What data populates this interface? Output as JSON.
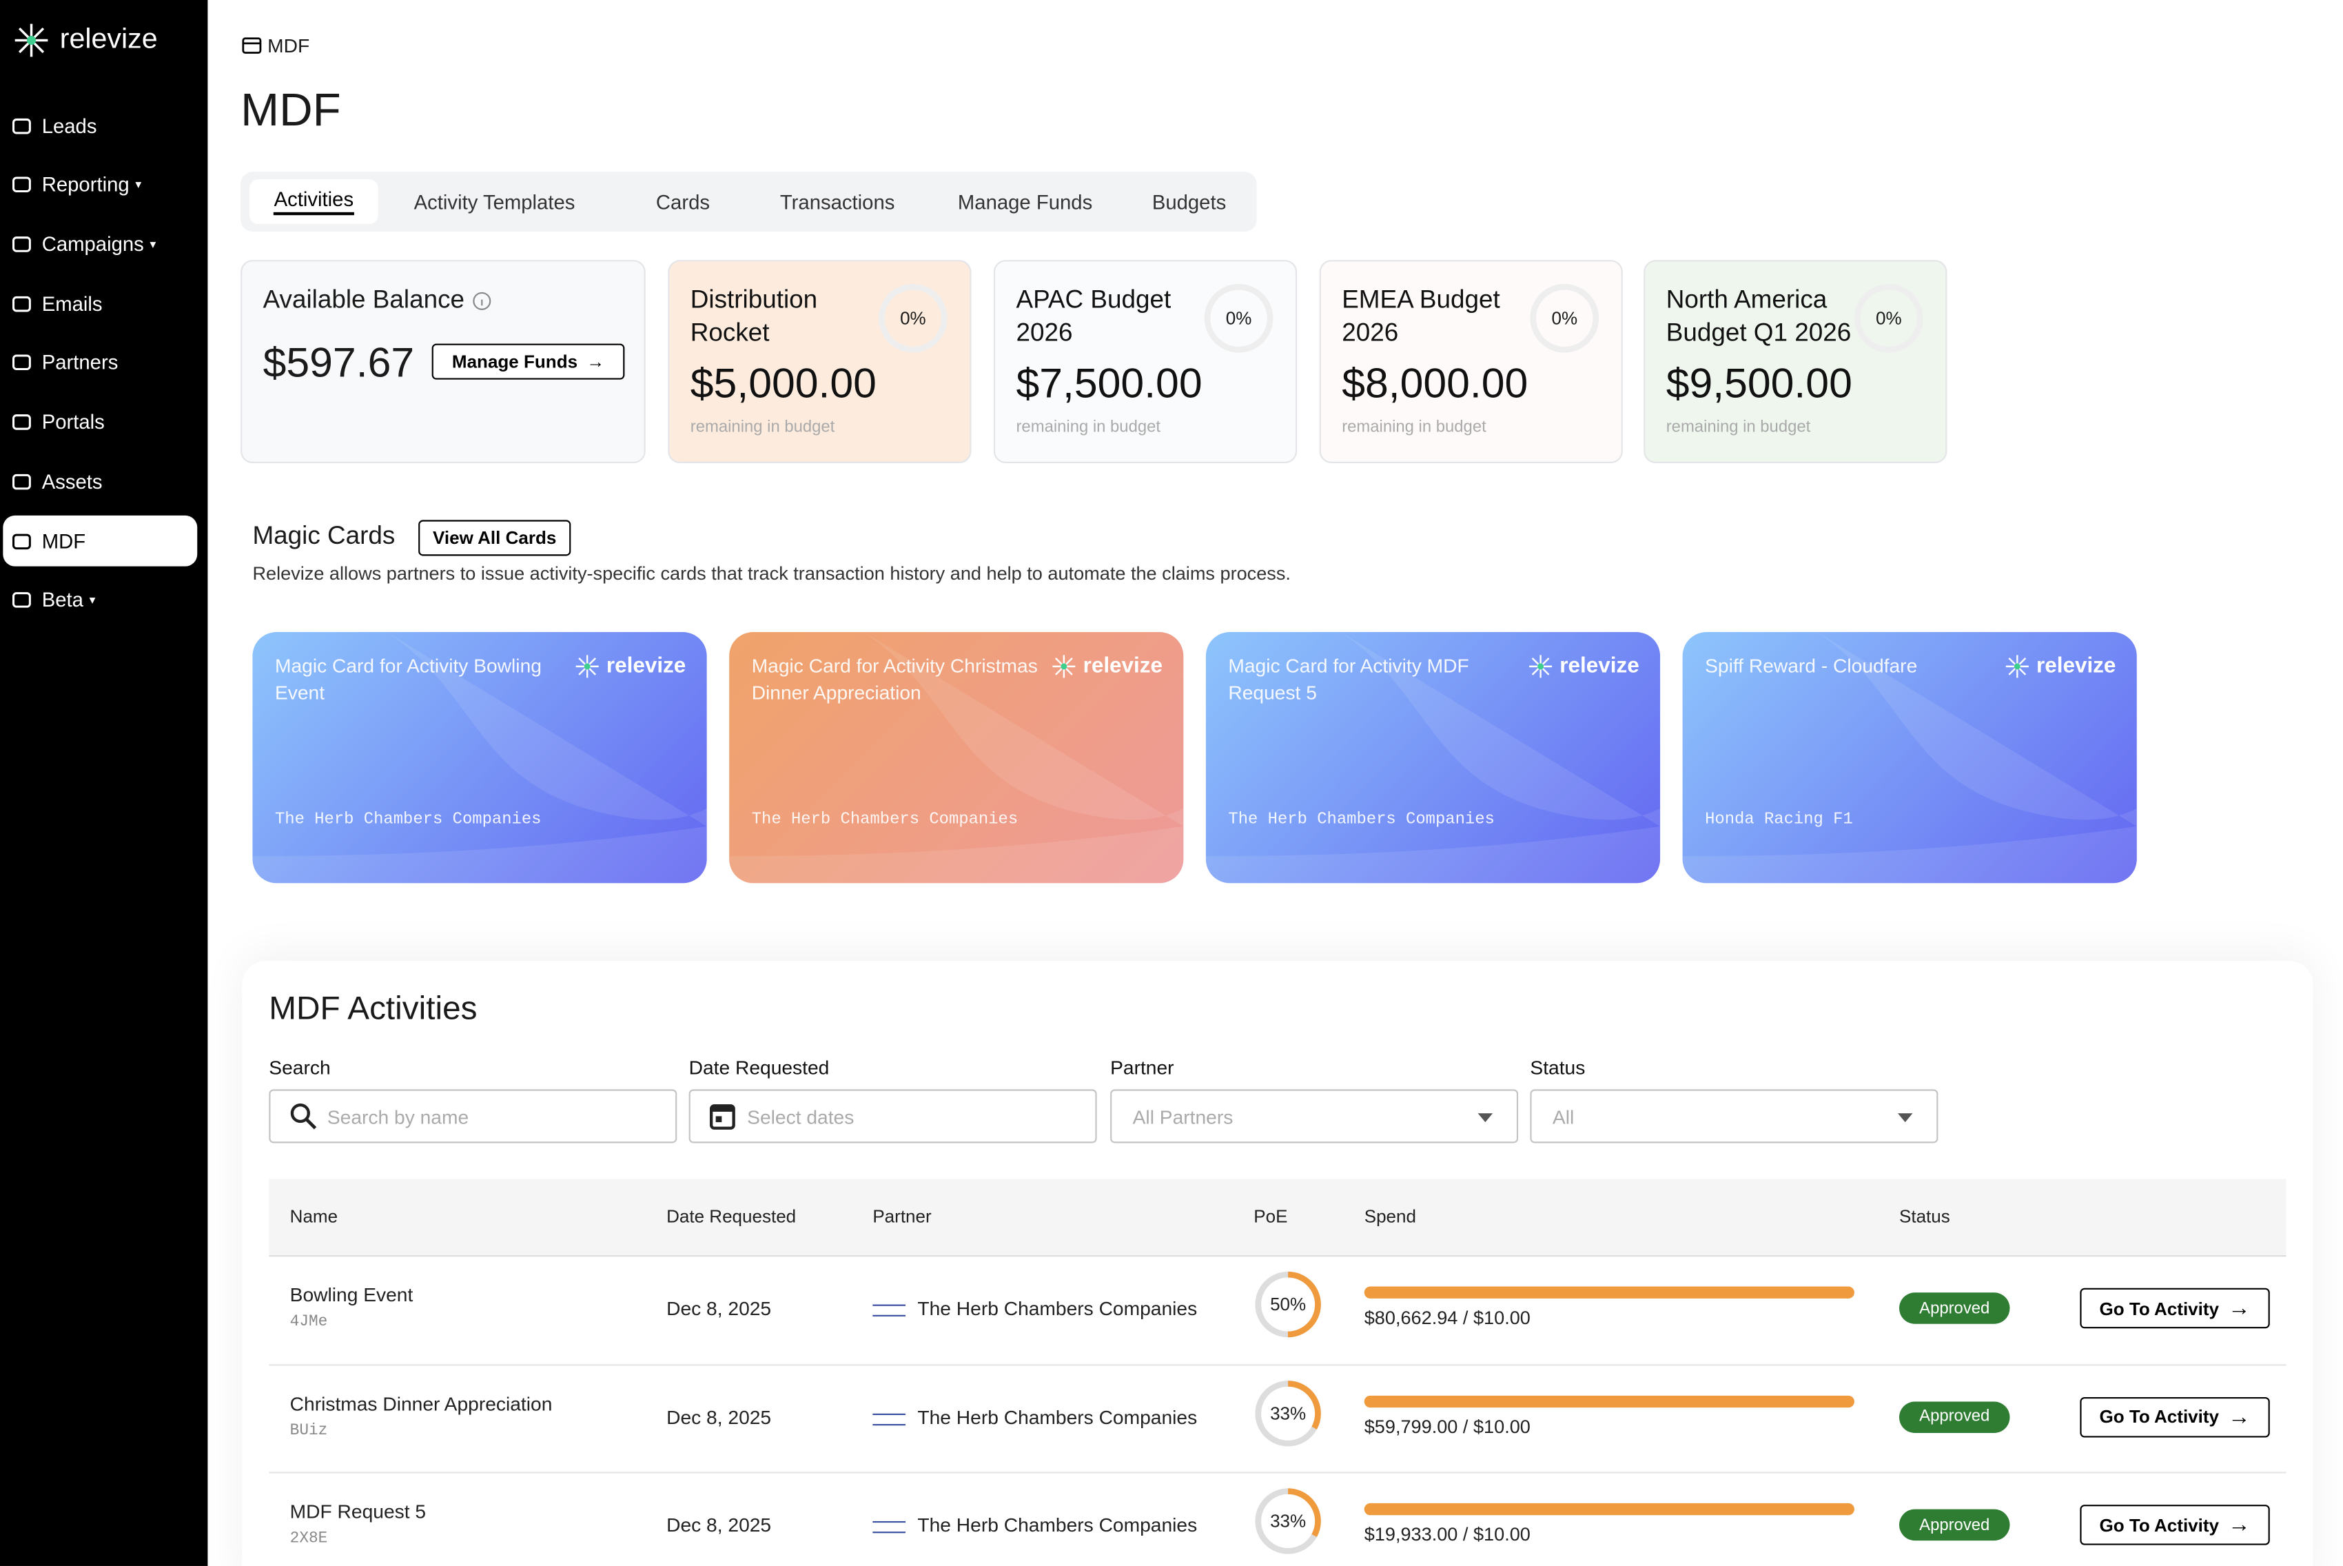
{
  "sidebar": {
    "brand": "relevize",
    "items": [
      {
        "label": "Leads"
      },
      {
        "label": "Reporting",
        "caret": true
      },
      {
        "label": "Campaigns",
        "caret": true
      },
      {
        "label": "Emails"
      },
      {
        "label": "Partners"
      },
      {
        "label": "Portals"
      },
      {
        "label": "Assets"
      },
      {
        "label": "MDF",
        "active": true
      },
      {
        "label": "Beta",
        "caret": true
      }
    ]
  },
  "breadcrumb": "MDF",
  "title": "MDF",
  "tabs": [
    "Activities",
    "Activity Templates",
    "Cards",
    "Transactions",
    "Manage Funds",
    "Budgets"
  ],
  "balance": {
    "label": "Available Balance",
    "amount": "$597.67",
    "button": "Manage Funds"
  },
  "budgets": [
    {
      "name": "Distribution Rocket",
      "percent": {
        "value": 0,
        "label": "0%"
      },
      "amount": "$5,000.00",
      "caption": "remaining in budget",
      "color": "#fdebdd"
    },
    {
      "name": "APAC Budget 2026",
      "percent": {
        "value": 0,
        "label": "0%"
      },
      "amount": "$7,500.00",
      "caption": "remaining in budget",
      "color": "#fafbfc"
    },
    {
      "name": "EMEA Budget 2026",
      "percent": {
        "value": 0,
        "label": "0%"
      },
      "amount": "$8,000.00",
      "caption": "remaining in budget",
      "color": "#fffafa"
    },
    {
      "name": "North America Budget Q1 2026",
      "percent": {
        "value": 0,
        "label": "0%"
      },
      "amount": "$9,500.00",
      "caption": "remaining in budget",
      "color": "#eef6ee"
    }
  ],
  "magic_cards": {
    "title": "Magic Cards",
    "button": "View All Cards",
    "description": "Relevize allows partners to issue activity-specific cards that track transaction history and help to automate the claims process.",
    "cards": [
      {
        "title": "Magic Card for Activity Bowling Event",
        "brand": "relevize",
        "holder": "The Herb Chambers Companies",
        "gradient": [
          "#8ec5fc",
          "#6366f1"
        ]
      },
      {
        "title": "Magic Card for Activity Christmas Dinner Appreciation",
        "brand": "relevize",
        "holder": "The Herb Chambers Companies",
        "gradient": [
          "#f0a36a",
          "#ee9a9a"
        ]
      },
      {
        "title": "Magic Card for Activity MDF Request 5",
        "brand": "relevize",
        "holder": "The Herb Chambers Companies",
        "gradient": [
          "#8ec5fc",
          "#6366f1"
        ]
      },
      {
        "title": "Spiff Reward - Cloudfare",
        "brand": "relevize",
        "holder": "Honda Racing F1",
        "gradient": [
          "#8ec5fc",
          "#6366f1"
        ]
      }
    ]
  },
  "activities": {
    "title": "MDF Activities",
    "filters": [
      {
        "label": "Search",
        "placeholder": "Search by name"
      },
      {
        "label": "Date Requested",
        "placeholder": "Select dates"
      },
      {
        "label": "Partner",
        "placeholder": "All Partners"
      },
      {
        "label": "Status",
        "placeholder": "All"
      }
    ],
    "columns": [
      "Name",
      "Date Requested",
      "Partner",
      "PoE",
      "Spend",
      "Status"
    ],
    "rows": [
      {
        "name": "Bowling Event",
        "id": "4JMe",
        "date": "Dec 8, 2025",
        "partner": "The Herb Chambers Companies",
        "poe": {
          "value": 50,
          "label": "50%"
        },
        "spend": "$80,662.94 / $10.00",
        "status": "Approved",
        "action": "Go To Activity"
      },
      {
        "name": "Christmas Dinner Appreciation",
        "id": "BUiz",
        "date": "Dec 8, 2025",
        "partner": "The Herb Chambers Companies",
        "poe": {
          "value": 33,
          "label": "33%"
        },
        "spend": "$59,799.00 / $10.00",
        "status": "Approved",
        "action": "Go To Activity"
      },
      {
        "name": "MDF Request 5",
        "id": "2X8E",
        "date": "Dec 8, 2025",
        "partner": "The Herb Chambers Companies",
        "poe": {
          "value": 33,
          "label": "33%"
        },
        "spend": "$19,933.00 / $10.00",
        "status": "Approved",
        "action": "Go To Activity"
      }
    ]
  }
}
